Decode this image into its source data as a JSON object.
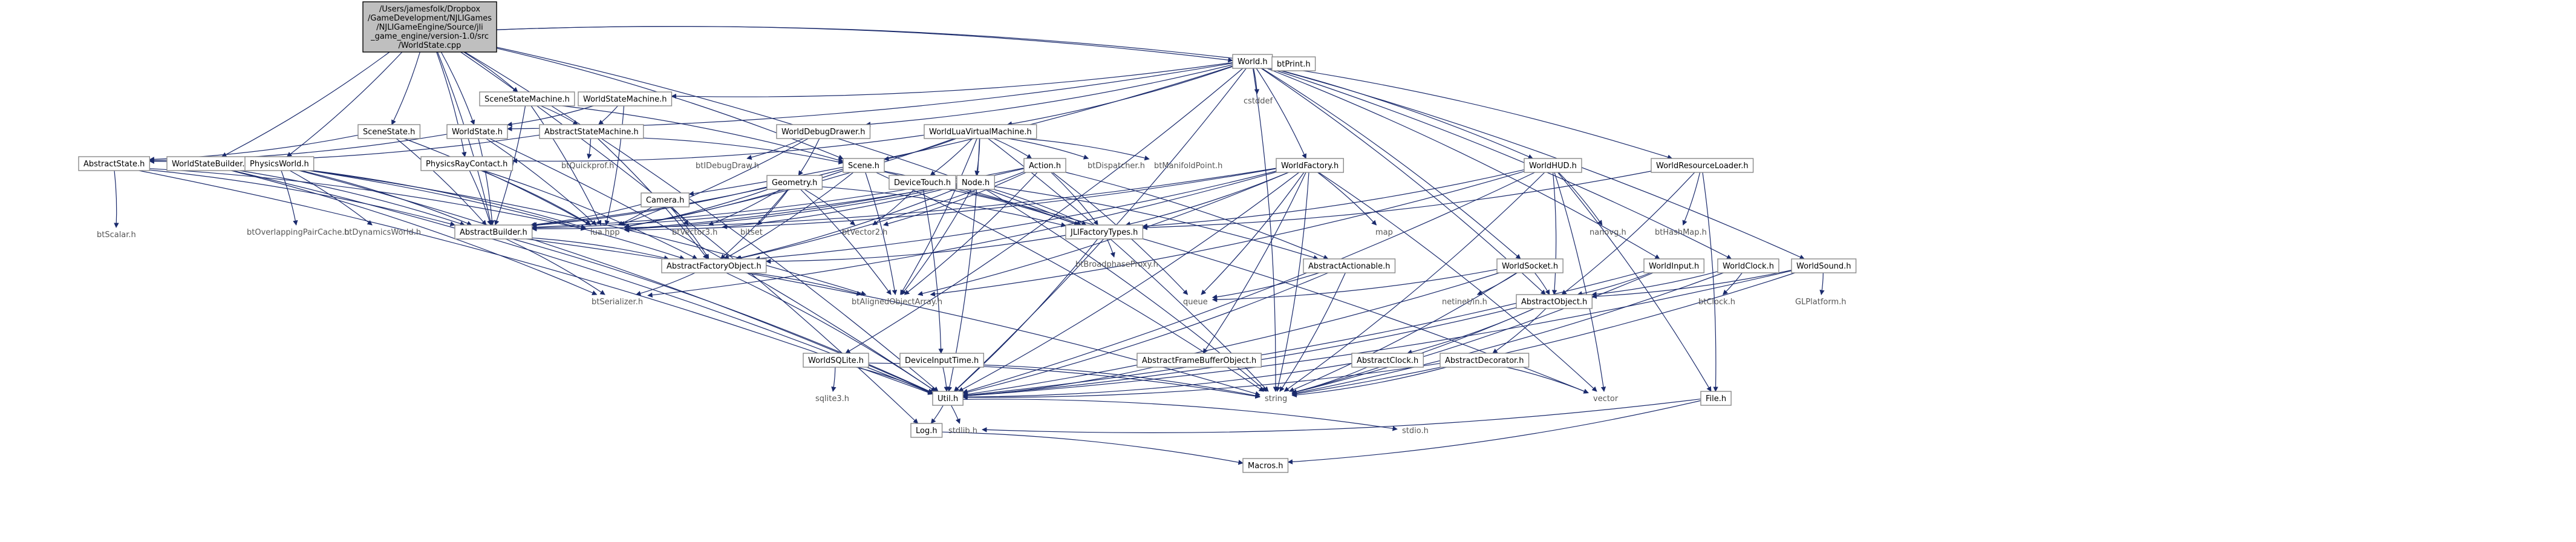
{
  "diagram": {
    "type": "include-dependency-graph",
    "root": "n_root",
    "nodes": [
      {
        "id": "n_root",
        "lines": [
          "/Users/jamesfolk/Dropbox",
          "/GameDevelopment/NJLIGames",
          "/NJLIGameEngine/Source/jli",
          "_game_engine/version-1.0/src",
          "/WorldState.cpp"
        ],
        "style": "root"
      },
      {
        "id": "n_world",
        "lines": [
          "World.h"
        ]
      },
      {
        "id": "n_btprint",
        "lines": [
          "btPrint.h"
        ]
      },
      {
        "id": "n_cstddef",
        "lines": [
          "cstddef"
        ],
        "style": "plain"
      },
      {
        "id": "n_ssm",
        "lines": [
          "SceneStateMachine.h"
        ]
      },
      {
        "id": "n_wsm",
        "lines": [
          "WorldStateMachine.h"
        ]
      },
      {
        "id": "n_abssm",
        "lines": [
          "AbstractStateMachine.h"
        ]
      },
      {
        "id": "n_scenestate",
        "lines": [
          "SceneState.h"
        ]
      },
      {
        "id": "n_worldstate",
        "lines": [
          "WorldState.h"
        ]
      },
      {
        "id": "n_absstate",
        "lines": [
          "AbstractState.h"
        ]
      },
      {
        "id": "n_btscalar",
        "lines": [
          "btScalar.h"
        ],
        "style": "plain"
      },
      {
        "id": "n_wsb",
        "lines": [
          "WorldStateBuilder.h"
        ]
      },
      {
        "id": "n_physworld",
        "lines": [
          "PhysicsWorld.h"
        ]
      },
      {
        "id": "n_btopc",
        "lines": [
          "btOverlappingPairCache.h"
        ],
        "style": "plain"
      },
      {
        "id": "n_btdw",
        "lines": [
          "btDynamicsWorld.h"
        ],
        "style": "plain"
      },
      {
        "id": "n_prc",
        "lines": [
          "PhysicsRayContact.h"
        ]
      },
      {
        "id": "n_btqp",
        "lines": [
          "btQuickprof.h"
        ],
        "style": "plain"
      },
      {
        "id": "n_absbuilder",
        "lines": [
          "AbstractBuilder.h"
        ]
      },
      {
        "id": "n_luahpp",
        "lines": [
          "lua.hpp"
        ],
        "style": "plain"
      },
      {
        "id": "n_wdd",
        "lines": [
          "WorldDebugDrawer.h"
        ]
      },
      {
        "id": "n_btdd",
        "lines": [
          "btIDebugDraw.h"
        ],
        "style": "plain"
      },
      {
        "id": "n_wlvm",
        "lines": [
          "WorldLuaVirtualMachine.h"
        ]
      },
      {
        "id": "n_camera",
        "lines": [
          "Camera.h"
        ]
      },
      {
        "id": "n_geometry",
        "lines": [
          "Geometry.h"
        ]
      },
      {
        "id": "n_scene",
        "lines": [
          "Scene.h"
        ]
      },
      {
        "id": "n_devtouch",
        "lines": [
          "DeviceTouch.h"
        ]
      },
      {
        "id": "n_node",
        "lines": [
          "Node.h"
        ]
      },
      {
        "id": "n_action",
        "lines": [
          "Action.h"
        ]
      },
      {
        "id": "n_btdispatcher",
        "lines": [
          "btDispatcher.h"
        ],
        "style": "plain"
      },
      {
        "id": "n_btmp",
        "lines": [
          "btManifoldPoint.h"
        ],
        "style": "plain"
      },
      {
        "id": "n_wfactory",
        "lines": [
          "WorldFactory.h"
        ]
      },
      {
        "id": "n_map",
        "lines": [
          "map"
        ],
        "style": "plain"
      },
      {
        "id": "n_whud",
        "lines": [
          "WorldHUD.h"
        ]
      },
      {
        "id": "n_nanovg",
        "lines": [
          "nanovg.h"
        ],
        "style": "plain"
      },
      {
        "id": "n_wrl",
        "lines": [
          "WorldResourceLoader.h"
        ]
      },
      {
        "id": "n_bthm",
        "lines": [
          "btHashMap.h"
        ],
        "style": "plain"
      },
      {
        "id": "n_btv3",
        "lines": [
          "btVector3.h"
        ],
        "style": "plain"
      },
      {
        "id": "n_bitset",
        "lines": [
          "bitset"
        ],
        "style": "plain"
      },
      {
        "id": "n_btv2",
        "lines": [
          "btVector2.h"
        ],
        "style": "plain"
      },
      {
        "id": "n_jft",
        "lines": [
          "JLIFactoryTypes.h"
        ]
      },
      {
        "id": "n_btbp",
        "lines": [
          "btBroadphaseProxy.h"
        ],
        "style": "plain"
      },
      {
        "id": "n_absfo",
        "lines": [
          "AbstractFactoryObject.h"
        ]
      },
      {
        "id": "n_btser",
        "lines": [
          "btSerializer.h"
        ],
        "style": "plain"
      },
      {
        "id": "n_btaoa",
        "lines": [
          "btAlignedObjectArray.h"
        ],
        "style": "plain"
      },
      {
        "id": "n_absact",
        "lines": [
          "AbstractActionable.h"
        ]
      },
      {
        "id": "n_queue",
        "lines": [
          "queue"
        ],
        "style": "plain"
      },
      {
        "id": "n_wsocket",
        "lines": [
          "WorldSocket.h"
        ]
      },
      {
        "id": "n_netinet",
        "lines": [
          "netinet/in.h"
        ],
        "style": "plain"
      },
      {
        "id": "n_absobj",
        "lines": [
          "AbstractObject.h"
        ]
      },
      {
        "id": "n_winput",
        "lines": [
          "WorldInput.h"
        ]
      },
      {
        "id": "n_wclock",
        "lines": [
          "WorldClock.h"
        ]
      },
      {
        "id": "n_btclock",
        "lines": [
          "btClock.h"
        ],
        "style": "plain"
      },
      {
        "id": "n_wsound",
        "lines": [
          "WorldSound.h"
        ]
      },
      {
        "id": "n_glplat",
        "lines": [
          "GLPlatform.h"
        ],
        "style": "plain"
      },
      {
        "id": "n_wsqlite",
        "lines": [
          "WorldSQLite.h"
        ]
      },
      {
        "id": "n_sqlite",
        "lines": [
          "sqlite3.h"
        ],
        "style": "plain"
      },
      {
        "id": "n_dit",
        "lines": [
          "DeviceInputTime.h"
        ]
      },
      {
        "id": "n_afbo",
        "lines": [
          "AbstractFrameBufferObject.h"
        ]
      },
      {
        "id": "n_absclock",
        "lines": [
          "AbstractClock.h"
        ]
      },
      {
        "id": "n_absdec",
        "lines": [
          "AbstractDecorator.h"
        ]
      },
      {
        "id": "n_util",
        "lines": [
          "Util.h"
        ]
      },
      {
        "id": "n_string",
        "lines": [
          "string"
        ],
        "style": "plain"
      },
      {
        "id": "n_vector",
        "lines": [
          "vector"
        ],
        "style": "plain"
      },
      {
        "id": "n_file",
        "lines": [
          "File.h"
        ]
      },
      {
        "id": "n_log",
        "lines": [
          "Log.h"
        ]
      },
      {
        "id": "n_stdlib",
        "lines": [
          "stdlib.h"
        ],
        "style": "plain"
      },
      {
        "id": "n_stdio",
        "lines": [
          "stdio.h"
        ],
        "style": "plain"
      },
      {
        "id": "n_macros",
        "lines": [
          "Macros.h"
        ]
      }
    ],
    "edges": [
      [
        "n_root",
        "n_world"
      ],
      [
        "n_root",
        "n_btprint"
      ],
      [
        "n_root",
        "n_ssm"
      ],
      [
        "n_root",
        "n_scenestate"
      ],
      [
        "n_root",
        "n_worldstate"
      ],
      [
        "n_root",
        "n_wsb"
      ],
      [
        "n_root",
        "n_physworld"
      ],
      [
        "n_root",
        "n_prc"
      ],
      [
        "n_root",
        "n_scene"
      ],
      [
        "n_root",
        "n_jft"
      ],
      [
        "n_root",
        "n_absbuilder"
      ],
      [
        "n_root",
        "n_util"
      ],
      [
        "n_root",
        "n_log"
      ],
      [
        "n_world",
        "n_btprint"
      ],
      [
        "n_world",
        "n_cstddef"
      ],
      [
        "n_world",
        "n_wsm"
      ],
      [
        "n_world",
        "n_wdd"
      ],
      [
        "n_world",
        "n_wlvm"
      ],
      [
        "n_world",
        "n_camera"
      ],
      [
        "n_world",
        "n_wfactory"
      ],
      [
        "n_world",
        "n_whud"
      ],
      [
        "n_world",
        "n_wrl"
      ],
      [
        "n_world",
        "n_wsocket"
      ],
      [
        "n_world",
        "n_winput"
      ],
      [
        "n_world",
        "n_wclock"
      ],
      [
        "n_world",
        "n_wsound"
      ],
      [
        "n_world",
        "n_wsqlite"
      ],
      [
        "n_world",
        "n_worldstate"
      ],
      [
        "n_world",
        "n_util"
      ],
      [
        "n_world",
        "n_string"
      ],
      [
        "n_world",
        "n_absobj"
      ],
      [
        "n_ssm",
        "n_abssm"
      ],
      [
        "n_ssm",
        "n_scene"
      ],
      [
        "n_ssm",
        "n_luahpp"
      ],
      [
        "n_ssm",
        "n_absbuilder"
      ],
      [
        "n_wsm",
        "n_abssm"
      ],
      [
        "n_wsm",
        "n_worldstate"
      ],
      [
        "n_wsm",
        "n_luahpp"
      ],
      [
        "n_abssm",
        "n_absstate"
      ],
      [
        "n_abssm",
        "n_btqp"
      ],
      [
        "n_abssm",
        "n_absfo"
      ],
      [
        "n_abssm",
        "n_scene"
      ],
      [
        "n_scenestate",
        "n_absstate"
      ],
      [
        "n_scenestate",
        "n_luahpp"
      ],
      [
        "n_scenestate",
        "n_absbuilder"
      ],
      [
        "n_worldstate",
        "n_absstate"
      ],
      [
        "n_worldstate",
        "n_luahpp"
      ],
      [
        "n_worldstate",
        "n_absbuilder"
      ],
      [
        "n_worldstate",
        "n_util"
      ],
      [
        "n_absstate",
        "n_btscalar"
      ],
      [
        "n_absstate",
        "n_luahpp"
      ],
      [
        "n_absstate",
        "n_absbuilder"
      ],
      [
        "n_absstate",
        "n_util"
      ],
      [
        "n_wsb",
        "n_absbuilder"
      ],
      [
        "n_wsb",
        "n_btser"
      ],
      [
        "n_wsb",
        "n_util"
      ],
      [
        "n_physworld",
        "n_btopc"
      ],
      [
        "n_physworld",
        "n_btdw"
      ],
      [
        "n_physworld",
        "n_absbuilder"
      ],
      [
        "n_physworld",
        "n_luahpp"
      ],
      [
        "n_physworld",
        "n_absfo"
      ],
      [
        "n_physworld",
        "n_util"
      ],
      [
        "n_physworld",
        "n_btaoa"
      ],
      [
        "n_prc",
        "n_absbuilder"
      ],
      [
        "n_prc",
        "n_luahpp"
      ],
      [
        "n_prc",
        "n_absfo"
      ],
      [
        "n_absbuilder",
        "n_absfo"
      ],
      [
        "n_absbuilder",
        "n_btser"
      ],
      [
        "n_absbuilder",
        "n_util"
      ],
      [
        "n_absbuilder",
        "n_string"
      ],
      [
        "n_wdd",
        "n_btdd"
      ],
      [
        "n_wdd",
        "n_geometry"
      ],
      [
        "n_wdd",
        "n_luahpp"
      ],
      [
        "n_wlvm",
        "n_luahpp"
      ],
      [
        "n_wlvm",
        "n_scene"
      ],
      [
        "n_wlvm",
        "n_devtouch"
      ],
      [
        "n_wlvm",
        "n_node"
      ],
      [
        "n_wlvm",
        "n_action"
      ],
      [
        "n_wlvm",
        "n_btdispatcher"
      ],
      [
        "n_wlvm",
        "n_btmp"
      ],
      [
        "n_wlvm",
        "n_btaoa"
      ],
      [
        "n_wlvm",
        "n_string"
      ],
      [
        "n_wlvm",
        "n_prc"
      ],
      [
        "n_wlvm",
        "n_util"
      ],
      [
        "n_camera",
        "n_absbuilder"
      ],
      [
        "n_camera",
        "n_absfo"
      ],
      [
        "n_camera",
        "n_btv3"
      ],
      [
        "n_camera",
        "n_luahpp"
      ],
      [
        "n_geometry",
        "n_absbuilder"
      ],
      [
        "n_geometry",
        "n_absfo"
      ],
      [
        "n_geometry",
        "n_btv3"
      ],
      [
        "n_geometry",
        "n_bitset"
      ],
      [
        "n_geometry",
        "n_btv2"
      ],
      [
        "n_geometry",
        "n_luahpp"
      ],
      [
        "n_geometry",
        "n_btaoa"
      ],
      [
        "n_geometry",
        "n_jft"
      ],
      [
        "n_scene",
        "n_absbuilder"
      ],
      [
        "n_scene",
        "n_absfo"
      ],
      [
        "n_scene",
        "n_luahpp"
      ],
      [
        "n_scene",
        "n_jft"
      ],
      [
        "n_scene",
        "n_btaoa"
      ],
      [
        "n_scene",
        "n_string"
      ],
      [
        "n_scene",
        "n_vector"
      ],
      [
        "n_devtouch",
        "n_btv2"
      ],
      [
        "n_devtouch",
        "n_dit"
      ],
      [
        "n_devtouch",
        "n_jft"
      ],
      [
        "n_node",
        "n_absbuilder"
      ],
      [
        "n_node",
        "n_absfo"
      ],
      [
        "n_node",
        "n_btv3"
      ],
      [
        "n_node",
        "n_jft"
      ],
      [
        "n_node",
        "n_absact"
      ],
      [
        "n_node",
        "n_btaoa"
      ],
      [
        "n_node",
        "n_string"
      ],
      [
        "n_node",
        "n_luahpp"
      ],
      [
        "n_action",
        "n_absbuilder"
      ],
      [
        "n_action",
        "n_absfo"
      ],
      [
        "n_action",
        "n_jft"
      ],
      [
        "n_action",
        "n_btv2"
      ],
      [
        "n_action",
        "n_queue"
      ],
      [
        "n_action",
        "n_btaoa"
      ],
      [
        "n_action",
        "n_luahpp"
      ],
      [
        "n_action",
        "n_absact"
      ],
      [
        "n_wfactory",
        "n_jft"
      ],
      [
        "n_wfactory",
        "n_map"
      ],
      [
        "n_wfactory",
        "n_util"
      ],
      [
        "n_wfactory",
        "n_absfo"
      ],
      [
        "n_wfactory",
        "n_btaoa"
      ],
      [
        "n_wfactory",
        "n_string"
      ],
      [
        "n_wfactory",
        "n_absbuilder"
      ],
      [
        "n_wfactory",
        "n_luahpp"
      ],
      [
        "n_wfactory",
        "n_queue"
      ],
      [
        "n_wfactory",
        "n_vector"
      ],
      [
        "n_wfactory",
        "n_btser"
      ],
      [
        "n_wfactory",
        "n_afbo"
      ],
      [
        "n_whud",
        "n_nanovg"
      ],
      [
        "n_whud",
        "n_jft"
      ],
      [
        "n_whud",
        "n_absobj"
      ],
      [
        "n_whud",
        "n_string"
      ],
      [
        "n_whud",
        "n_util"
      ],
      [
        "n_whud",
        "n_file"
      ],
      [
        "n_whud",
        "n_btaoa"
      ],
      [
        "n_whud",
        "n_vector"
      ],
      [
        "n_wrl",
        "n_bthm"
      ],
      [
        "n_wrl",
        "n_absobj"
      ],
      [
        "n_wrl",
        "n_file"
      ],
      [
        "n_wrl",
        "n_jft"
      ],
      [
        "n_jft",
        "n_btbp"
      ],
      [
        "n_jft",
        "n_util"
      ],
      [
        "n_jft",
        "n_absfo"
      ],
      [
        "n_absfo",
        "n_btser"
      ],
      [
        "n_absfo",
        "n_btaoa"
      ],
      [
        "n_absfo",
        "n_util"
      ],
      [
        "n_absact",
        "n_queue"
      ],
      [
        "n_absact",
        "n_string"
      ],
      [
        "n_absact",
        "n_util"
      ],
      [
        "n_wsocket",
        "n_netinet"
      ],
      [
        "n_wsocket",
        "n_absobj"
      ],
      [
        "n_wsocket",
        "n_string"
      ],
      [
        "n_wsocket",
        "n_util"
      ],
      [
        "n_wsocket",
        "n_queue"
      ],
      [
        "n_absobj",
        "n_absclock"
      ],
      [
        "n_absobj",
        "n_absdec"
      ],
      [
        "n_absobj",
        "n_util"
      ],
      [
        "n_absobj",
        "n_string"
      ],
      [
        "n_winput",
        "n_absobj"
      ],
      [
        "n_winput",
        "n_string"
      ],
      [
        "n_winput",
        "n_util"
      ],
      [
        "n_wclock",
        "n_btclock"
      ],
      [
        "n_wclock",
        "n_absobj"
      ],
      [
        "n_wclock",
        "n_string"
      ],
      [
        "n_wsound",
        "n_glplat"
      ],
      [
        "n_wsound",
        "n_absobj"
      ],
      [
        "n_wsound",
        "n_util"
      ],
      [
        "n_wsound",
        "n_string"
      ],
      [
        "n_wsqlite",
        "n_sqlite"
      ],
      [
        "n_wsqlite",
        "n_util"
      ],
      [
        "n_wsqlite",
        "n_string"
      ],
      [
        "n_dit",
        "n_util"
      ],
      [
        "n_dit",
        "n_string"
      ],
      [
        "n_afbo",
        "n_util"
      ],
      [
        "n_absclock",
        "n_util"
      ],
      [
        "n_absclock",
        "n_string"
      ],
      [
        "n_absdec",
        "n_vector"
      ],
      [
        "n_absdec",
        "n_string"
      ],
      [
        "n_absdec",
        "n_util"
      ],
      [
        "n_util",
        "n_log"
      ],
      [
        "n_util",
        "n_stdlib"
      ],
      [
        "n_util",
        "n_stdio"
      ],
      [
        "n_file",
        "n_stdlib"
      ],
      [
        "n_file",
        "n_macros"
      ],
      [
        "n_log",
        "n_macros"
      ]
    ]
  }
}
